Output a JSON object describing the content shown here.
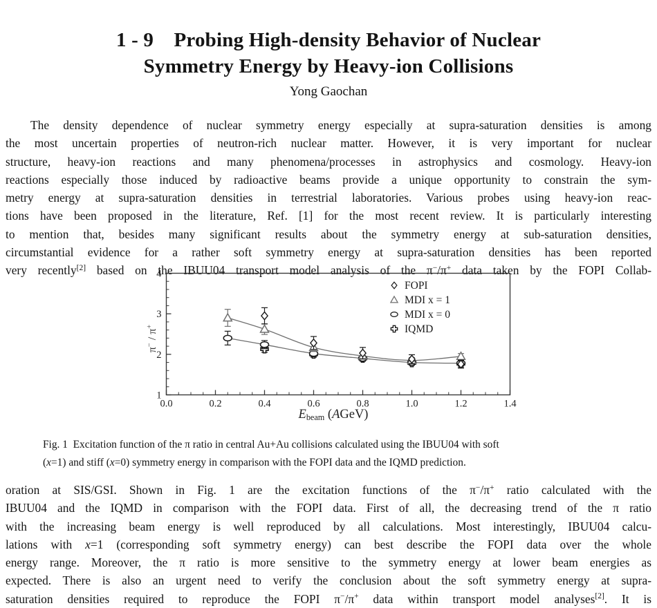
{
  "page": {
    "title_line1": "1 - 9  Probing High-density Behavior of Nuclear",
    "title_line2": "Symmetry Energy by Heavy-ion Collisions",
    "author": "Yong Gaochan",
    "paragraph1_lines": [
      "\tThe density dependence of nuclear symmetry energy especially at supra-saturation densities is among",
      "the most uncertain properties of neutron-rich nuclear matter. However, it is very important for nuclear",
      "structure, heavy-ion reactions and many phenomena/processes in astrophysics and cosmology. Heavy-ion",
      "reactions especially those induced by radioactive beams provide a unique opportunity to constrain the sym-",
      "metry energy at supra-saturation densities in terrestrial laboratories. Various probes using heavy-ion reac-",
      "tions have been proposed in the literature, Ref. [1] for the most recent review. It is particularly interesting",
      "to mention that, besides many significant results about the symmetry energy at sub-saturation densities,",
      "circumstantial evidence for a rather soft symmetry energy at supra-saturation densities has been reported",
      "very recently^{[2]} based on the IBUU04 transport model analysis of the π^{−}/π^{+} data taken by the FOPI Collab-"
    ],
    "caption_lines": [
      "Fig. 1 Excitation function of the π ratio in central Au+Au collisions calculated using the IBUU04 with soft",
      "(*x*=1) and stiff (*x*=0) symmetry energy in comparison with the FOPI data and the IQMD prediction."
    ],
    "paragraph2_lines": [
      "oration at SIS/GSI. Shown in Fig. 1 are the excitation functions of the π^{−}/π^{+} ratio calculated with the",
      "IBUU04 and the IQMD in comparison with the FOPI data. First of all, the decreasing trend of the π ratio",
      "with the increasing beam energy is well reproduced by all calculations. Most interestingly, IBUU04 calcu-",
      "lations with *x*=1 (corresponding soft symmetry energy) can best describe the FOPI data over the whole",
      "energy range. Moreover, the π ratio is more sensitive to the symmetry energy at lower beam energies as",
      "expected. There is also an urgent need to verify the conclusion about the soft symmetry energy at supra-",
      "saturation densities required to reproduce the FOPI π^{−}/π^{+} data within transport model analyses^{[2]}. It is"
    ]
  },
  "chart_data": {
    "type": "scatter",
    "xlabel_rich": "*E*_{beam} (*A*GeV)",
    "ylabel_rich": "π^{−} / π^{+}",
    "xlim": [
      0,
      1.4
    ],
    "ylim": [
      1,
      4
    ],
    "x_ticks": [
      "0.0",
      "0.2",
      "0.4",
      "0.6",
      "0.8",
      "1.0",
      "1.2",
      "1.4"
    ],
    "y_ticks": [
      "1",
      "2",
      "3",
      "4"
    ],
    "x_minor_step": 0.05,
    "y_minor_step": 0.2,
    "grid": false,
    "legend_position": "top-right",
    "axis_color": "#3a3a3a",
    "curve_color": "#6f6f6f",
    "series": [
      {
        "name": "FOPI",
        "marker": "diamond",
        "color": "#1a1a1a",
        "curve": false,
        "x": [
          0.4,
          0.6,
          0.8,
          1.0,
          1.2
        ],
        "y": [
          2.95,
          2.28,
          2.03,
          1.88,
          1.76
        ],
        "err": [
          0.2,
          0.16,
          0.14,
          0.11,
          0.1
        ]
      },
      {
        "name": "MDI x = 1",
        "marker": "triangle",
        "color": "#6f6f6f",
        "curve": true,
        "x": [
          0.25,
          0.4,
          0.6,
          0.8,
          1.0,
          1.2
        ],
        "y": [
          2.9,
          2.62,
          2.17,
          1.96,
          1.85,
          1.95
        ],
        "err": [
          0.21,
          0.13,
          0.1,
          0.08,
          0.07,
          0.07
        ]
      },
      {
        "name": "MDI x = 0",
        "marker": "ellipse",
        "color": "#1a1a1a",
        "curve": true,
        "x": [
          0.25,
          0.4,
          0.6,
          0.8,
          1.0,
          1.2
        ],
        "y": [
          2.4,
          2.24,
          2.02,
          1.9,
          1.8,
          1.78
        ],
        "err": [
          0.17,
          0.1,
          0.08,
          0.07,
          0.06,
          0.06
        ]
      },
      {
        "name": "IQMD",
        "marker": "cross",
        "color": "#1a1a1a",
        "curve": false,
        "x": [
          0.4,
          0.6,
          0.8,
          1.0,
          1.2
        ],
        "y": [
          2.13,
          2.0,
          1.9,
          1.79,
          1.77
        ],
        "err": [
          0.08,
          0.07,
          0.06,
          0.06,
          0.08
        ]
      }
    ]
  }
}
